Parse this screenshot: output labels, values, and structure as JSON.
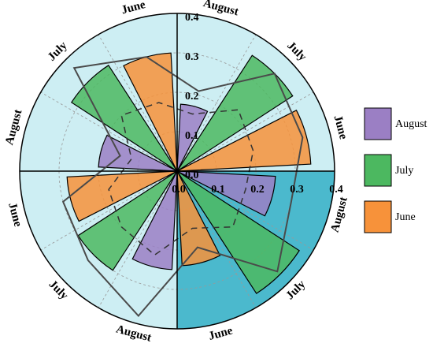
{
  "chart_data": {
    "type": "polar-bar",
    "categories": [
      "June",
      "July",
      "August",
      "June",
      "July",
      "August",
      "June",
      "July",
      "August",
      "June",
      "July",
      "August"
    ],
    "series": [
      {
        "name": "August",
        "color": "#9b7fc4",
        "values": [
          null,
          null,
          0.17,
          null,
          null,
          0.2,
          null,
          null,
          0.25,
          null,
          null,
          0.25
        ]
      },
      {
        "name": "July",
        "color": "#4cb860",
        "values": [
          null,
          0.35,
          null,
          null,
          0.32,
          null,
          null,
          0.3,
          null,
          null,
          0.37,
          null
        ]
      },
      {
        "name": "June",
        "color": "#f7923a",
        "values": [
          0.34,
          null,
          null,
          0.3,
          null,
          null,
          0.28,
          null,
          null,
          0.24,
          null,
          null
        ]
      }
    ],
    "lines": [
      {
        "color": "#4a4a4a",
        "dash": false,
        "values": [
          0.33,
          0.35,
          0.21,
          0.3,
          0.37,
          0.15,
          0.3,
          0.32,
          0.38,
          0.2,
          0.36,
          0.3
        ]
      },
      {
        "color": "#333333",
        "dash": true,
        "values": [
          0.2,
          0.22,
          0.15,
          0.18,
          0.2,
          0.12,
          0.18,
          0.2,
          0.22,
          0.15,
          0.2,
          0.18
        ]
      }
    ],
    "rlim": [
      0,
      0.4
    ],
    "rticks": [
      {
        "value": 0,
        "label": "0.0"
      },
      0.1,
      0.2,
      0.3,
      0.4
    ],
    "grid": true,
    "legend": "right"
  }
}
